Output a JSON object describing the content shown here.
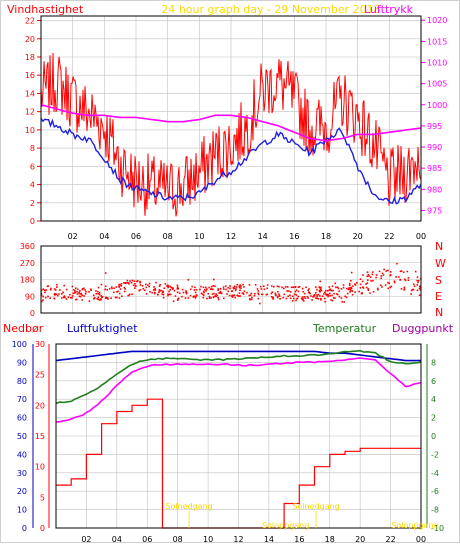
{
  "top_panel": {
    "title_left": "Vindhastighet",
    "title_center": "24 hour graph day - 29 November 2018",
    "title_right": "Lufttrykk"
  },
  "wind_panel": {
    "direction_labels": [
      "N",
      "W",
      "S",
      "E",
      "N"
    ]
  },
  "bottom_panel": {
    "title_nedbor": "Nedbør",
    "title_luftfuktighet": "Luftfuktighet",
    "title_temperatur": "Temperatur",
    "title_duggpunkt": "Duggpunkt",
    "annotations": [
      "Solnedgang",
      "Soloppgang",
      "Solnedgang",
      "Soloppgang"
    ]
  },
  "colors": {
    "wind_speed": "#ff0000",
    "wind_avg": "#2020e0",
    "pressure": "#ff00ff",
    "humidity": "#0000c0",
    "temperature": "#208020",
    "dewpoint": "#ff00ff",
    "rain": "#ff0000",
    "annotation": "#ffd700",
    "grid": "#c0c0c0"
  },
  "chart_data": [
    {
      "type": "line",
      "name": "wind-speed-and-pressure",
      "x_ticks": [
        "02",
        "04",
        "06",
        "08",
        "10",
        "12",
        "14",
        "16",
        "18",
        "20",
        "22",
        "00"
      ],
      "y_left_ticks": [
        "0",
        "2",
        "4",
        "6",
        "8",
        "10",
        "12",
        "14",
        "16",
        "18",
        "20",
        "22"
      ],
      "y_right_ticks": [
        "975",
        "980",
        "985",
        "990",
        "995",
        "1000",
        "1005",
        "1010",
        "1015",
        "1020"
      ],
      "ylim_left": [
        0,
        22.5
      ],
      "ylim_right": [
        972.5,
        1021
      ],
      "x": [
        0,
        1,
        2,
        3,
        4,
        5,
        6,
        7,
        8,
        9,
        10,
        11,
        12,
        13,
        14,
        15,
        16,
        17,
        18,
        19,
        20,
        21,
        22,
        23,
        24
      ],
      "series": [
        {
          "values": [
            13.5,
            15,
            13,
            11.5,
            10,
            6,
            4,
            3.5,
            3,
            3.5,
            5,
            7,
            8,
            10,
            14,
            15,
            13,
            10,
            10,
            13,
            11,
            8,
            4,
            5,
            7
          ]
        },
        {
          "values": [
            11,
            10.5,
            9.5,
            9,
            7,
            4.5,
            3.5,
            3,
            2.5,
            2.5,
            3,
            4.5,
            5.5,
            7,
            8.5,
            9.5,
            8.5,
            7.5,
            9,
            10,
            6,
            3,
            2,
            2.5,
            4
          ]
        },
        {
          "values": [
            1000,
            999,
            998,
            997.5,
            997.5,
            997,
            997,
            996.5,
            996,
            996,
            996.5,
            997.5,
            997.5,
            997,
            996,
            995,
            993.5,
            992,
            991.5,
            992,
            993,
            993,
            993.5,
            994,
            994.5
          ]
        }
      ]
    },
    {
      "type": "scatter",
      "name": "wind-direction",
      "y_ticks": [
        "0",
        "90",
        "180",
        "270",
        "360"
      ],
      "ylim": [
        0,
        360
      ],
      "x": [
        0,
        1,
        2,
        3,
        4,
        5,
        6,
        7,
        8,
        9,
        10,
        11,
        12,
        13,
        14,
        15,
        16,
        17,
        18,
        19,
        20,
        21,
        22,
        23,
        24
      ],
      "series": [
        {
          "values": [
            100,
            110,
            105,
            100,
            110,
            120,
            140,
            130,
            115,
            110,
            110,
            110,
            120,
            110,
            115,
            110,
            105,
            100,
            100,
            110,
            150,
            170,
            190,
            170,
            145
          ]
        }
      ]
    },
    {
      "type": "line",
      "name": "rain-humidity-temperature",
      "x_ticks": [
        "02",
        "04",
        "06",
        "08",
        "10",
        "12",
        "14",
        "16",
        "18",
        "20",
        "22",
        "00"
      ],
      "y_left_ticks": [
        "0",
        "10",
        "20",
        "30",
        "40",
        "50",
        "60",
        "70",
        "80",
        "90",
        "100"
      ],
      "y_rain_ticks": [
        "0",
        "5",
        "10",
        "15",
        "20",
        "25",
        "30"
      ],
      "y_right_ticks": [
        "-10",
        "-8",
        "-6",
        "-4",
        "-2",
        "0",
        "2",
        "4",
        "6",
        "8"
      ],
      "ylim_humidity": [
        0,
        100
      ],
      "ylim_rain": [
        0,
        30
      ],
      "ylim_temp": [
        -10,
        10
      ],
      "x": [
        0,
        1,
        2,
        3,
        4,
        5,
        6,
        7,
        8,
        9,
        10,
        11,
        12,
        13,
        14,
        15,
        16,
        17,
        18,
        19,
        20,
        21,
        22,
        23,
        24
      ],
      "series": [
        {
          "values": [
            91,
            92,
            93,
            94,
            95,
            96,
            96,
            96,
            96,
            96,
            96,
            96,
            96,
            96,
            96,
            96,
            96,
            96,
            95,
            95,
            94,
            93,
            92,
            91,
            91
          ]
        },
        {
          "values": [
            3.6,
            3.8,
            4.5,
            5.5,
            6.8,
            7.8,
            8.3,
            8.4,
            8.4,
            8.3,
            8.3,
            8.3,
            8.4,
            8.5,
            8.6,
            8.7,
            8.7,
            8.8,
            8.9,
            9.1,
            9.2,
            9.0,
            8.1,
            7.9,
            8.0
          ]
        },
        {
          "values": [
            1.5,
            1.8,
            2.5,
            3.8,
            5.5,
            7.0,
            7.6,
            7.8,
            7.8,
            7.8,
            7.8,
            7.8,
            7.7,
            7.7,
            7.8,
            7.9,
            8.0,
            8.0,
            8.1,
            8.3,
            8.5,
            8.2,
            6.8,
            5.4,
            5.8
          ]
        },
        {
          "values": [
            7,
            8,
            12,
            17,
            19,
            20,
            21,
            0,
            0,
            0,
            0,
            0,
            0,
            0,
            0,
            4,
            7,
            10,
            12,
            12.5,
            13,
            13,
            13,
            13,
            13
          ]
        }
      ]
    }
  ]
}
